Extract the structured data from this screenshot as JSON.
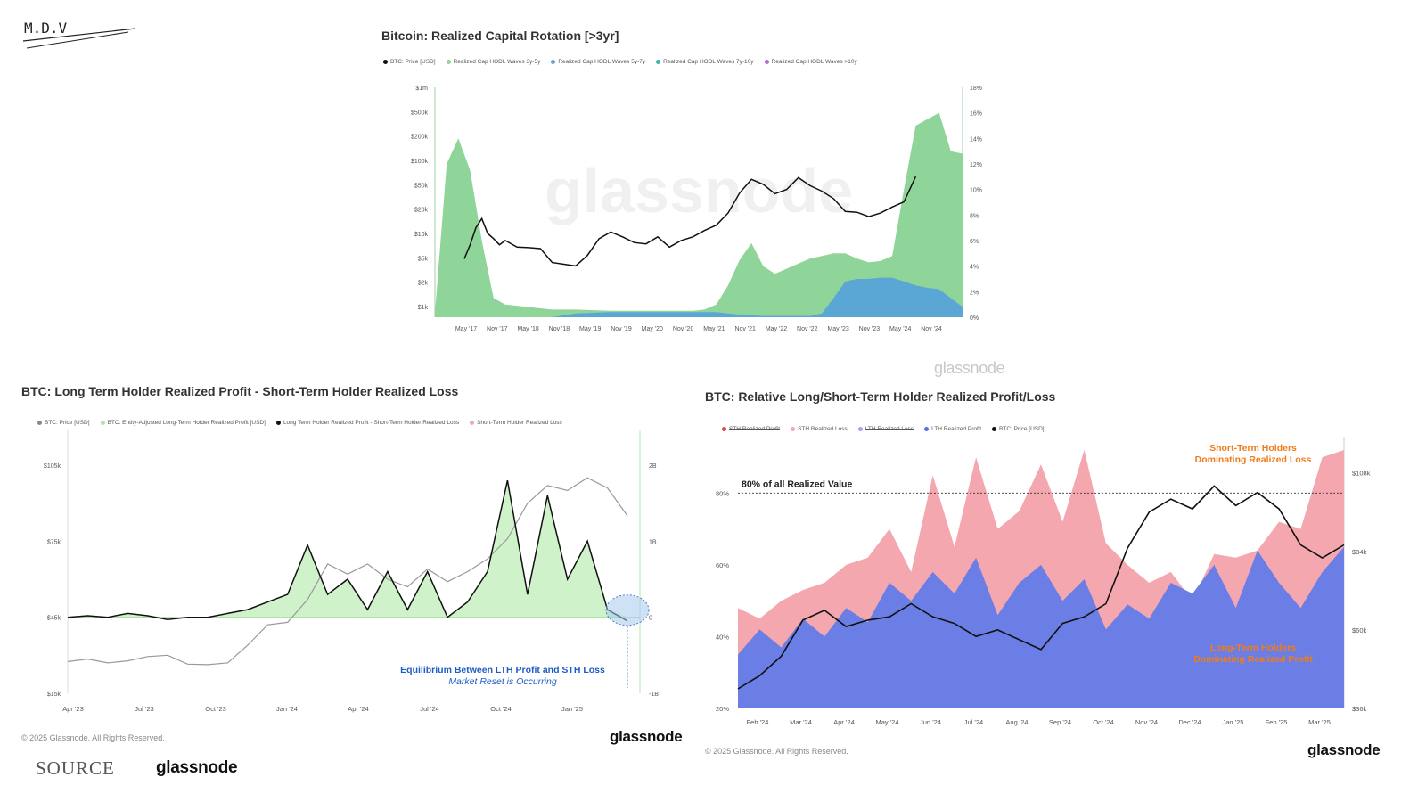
{
  "logo": {
    "text": "M.D.V"
  },
  "footer": {
    "source_label": "SOURCE",
    "source_brand": "glassnode"
  },
  "chart_data": [
    {
      "type": "area",
      "title": "Bitcoin: Realized Capital Rotation [>3yr]",
      "legend": [
        "BTC: Price [USD]",
        "Realized Cap HODL Waves 3y-5y",
        "Realized Cap HODL Waves 5y-7y",
        "Realized Cap HODL Waves 7y-10y",
        "Realized Cap HODL Waves >10y"
      ],
      "x_ticks": [
        "May '17",
        "Nov '17",
        "May '18",
        "Nov '18",
        "May '19",
        "Nov '19",
        "May '20",
        "Nov '20",
        "May '21",
        "Nov '21",
        "May '22",
        "Nov '22",
        "May '23",
        "Nov '23",
        "May '24",
        "Nov '24"
      ],
      "y_left_ticks": [
        "$1k",
        "$2k",
        "$5k",
        "$10k",
        "$20k",
        "$50k",
        "$100k",
        "$200k",
        "$500k",
        "$1m"
      ],
      "y_right_ticks": [
        "0%",
        "2%",
        "4%",
        "6%",
        "8%",
        "10%",
        "12%",
        "14%",
        "16%",
        "18%"
      ],
      "y_left_scale": "log",
      "watermark": "glassnode",
      "brand": "glassnode",
      "colors": {
        "price": "#111111",
        "green": "#8fd498",
        "blue": "#5aa7d6"
      },
      "series": [
        {
          "name": "BTC: Price [USD]",
          "axis": "left",
          "x": [
            0.5,
            0.6,
            0.7,
            0.8,
            0.9,
            1.0,
            1.1,
            1.2,
            1.4,
            1.6,
            1.8,
            2.0,
            2.2,
            2.4,
            2.6,
            2.8,
            3.0,
            3.2,
            3.4,
            3.6,
            3.8,
            4.0,
            4.2,
            4.4,
            4.6,
            4.8,
            5.0,
            5.2,
            5.4,
            5.6,
            5.8,
            6.0,
            6.2,
            6.4,
            6.6,
            6.8,
            7.0,
            7.2,
            7.4,
            7.6,
            7.8,
            8.0,
            8.2
          ],
          "y": [
            4500,
            7000,
            12000,
            16000,
            10000,
            8500,
            7000,
            8000,
            6500,
            6400,
            6200,
            4000,
            3800,
            3600,
            5000,
            8500,
            10500,
            9000,
            7500,
            7200,
            9000,
            6500,
            8000,
            9000,
            11000,
            13000,
            19000,
            36000,
            55000,
            47000,
            35000,
            40000,
            58000,
            45000,
            38000,
            30000,
            20000,
            19500,
            17000,
            19000,
            23000,
            27000,
            60000
          ]
        },
        {
          "name": "Realized Cap HODL Waves 3y-5y",
          "axis": "right",
          "x": [
            0.0,
            0.2,
            0.4,
            0.6,
            0.8,
            1.0,
            1.2,
            1.4,
            1.6,
            1.8,
            2.0,
            2.4,
            3.0,
            3.6,
            4.0,
            4.2,
            4.4,
            4.6,
            4.8,
            5.0,
            5.2,
            5.4,
            5.6,
            5.8,
            6.0,
            6.2,
            6.4,
            6.6,
            6.8,
            7.0,
            7.2,
            7.4,
            7.6,
            7.8,
            8.0,
            8.2,
            8.4,
            8.6,
            8.8,
            9.0
          ],
          "y": [
            0.3,
            12.0,
            14.0,
            11.5,
            6.0,
            1.5,
            1.0,
            0.9,
            0.8,
            0.7,
            0.6,
            0.6,
            0.5,
            0.5,
            0.5,
            0.5,
            0.5,
            0.6,
            1.0,
            2.5,
            4.5,
            5.8,
            4.0,
            3.4,
            3.8,
            4.2,
            4.6,
            4.8,
            5.0,
            5.0,
            4.6,
            4.3,
            4.4,
            4.8,
            10.0,
            15.0,
            15.5,
            16.0,
            13.0,
            12.8
          ]
        },
        {
          "name": "Realized Cap HODL Waves 5y-7y",
          "axis": "right",
          "x": [
            0.0,
            2.0,
            2.4,
            3.0,
            3.6,
            4.0,
            4.4,
            4.8,
            5.0,
            5.2,
            5.6,
            6.0,
            6.4,
            6.6,
            6.8,
            7.0,
            7.2,
            7.4,
            7.6,
            7.8,
            8.0,
            8.2,
            8.4,
            8.6,
            8.8,
            9.0
          ],
          "y": [
            0.0,
            0.0,
            0.3,
            0.4,
            0.4,
            0.4,
            0.4,
            0.4,
            0.3,
            0.2,
            0.1,
            0.1,
            0.1,
            0.3,
            1.5,
            2.8,
            3.0,
            3.0,
            3.1,
            3.1,
            2.8,
            2.5,
            2.3,
            2.2,
            1.5,
            0.8
          ]
        }
      ],
      "y_left_range": [
        "$1k",
        "$1m"
      ],
      "y_right_range": [
        0,
        18
      ]
    },
    {
      "type": "line",
      "title": "BTC: Long Term Holder Realized Profit - Short-Term Holder Realized Loss",
      "legend": [
        "BTC: Price [USD]",
        "BTC: Entity-Adjusted Long-Term Holder Realized Profit [USD]",
        "Long Term Holder Realized Profit - Short-Term Holder Realized Loss",
        "Short-Term Holder Realized Loss"
      ],
      "x_ticks": [
        "Apr '23",
        "Jul '23",
        "Oct '23",
        "Jan '24",
        "Apr '24",
        "Jul '24",
        "Oct '24",
        "Jan '25"
      ],
      "y_left_ticks": [
        "$15k",
        "$45k",
        "$75k",
        "$105k"
      ],
      "y_right_ticks": [
        "-1B",
        "0",
        "1B",
        "2B"
      ],
      "annotation": [
        "Equilibrium Between LTH Profit and STH Loss",
        "Market Reset is Occurring"
      ],
      "copyright": "© 2025 Glassnode. All Rights Reserved.",
      "brand": "glassnode",
      "series": [
        {
          "name": "BTC: Price [USD]",
          "axis": "left",
          "x": [
            0.0,
            0.3,
            0.6,
            0.9,
            1.2,
            1.5,
            1.8,
            2.1,
            2.4,
            2.7,
            3.0,
            3.3,
            3.6,
            3.9,
            4.2,
            4.5,
            4.8,
            5.1,
            5.4,
            5.7,
            6.0,
            6.3,
            6.6,
            6.9,
            7.2,
            7.5,
            7.8,
            8.1,
            8.4
          ],
          "y": [
            27500,
            28500,
            27000,
            27800,
            29500,
            30000,
            26500,
            26300,
            27000,
            34000,
            42000,
            43000,
            52000,
            66000,
            62000,
            66000,
            60000,
            57000,
            64000,
            59000,
            63000,
            68000,
            76000,
            90000,
            97000,
            95000,
            100000,
            96000,
            85000
          ]
        },
        {
          "name": "Long Term Holder Realized Profit - Short-Term Holder Realized Loss",
          "axis": "right",
          "x": [
            0.0,
            0.3,
            0.6,
            0.9,
            1.2,
            1.5,
            1.8,
            2.1,
            2.4,
            2.7,
            3.0,
            3.3,
            3.6,
            3.9,
            4.2,
            4.5,
            4.8,
            5.1,
            5.4,
            5.7,
            6.0,
            6.3,
            6.6,
            6.9,
            7.2,
            7.5,
            7.8,
            8.1,
            8.4
          ],
          "y": [
            0.0,
            0.02,
            0.0,
            0.05,
            0.02,
            -0.03,
            0.0,
            0.0,
            0.05,
            0.1,
            0.2,
            0.3,
            0.95,
            0.3,
            0.5,
            0.1,
            0.6,
            0.1,
            0.6,
            0.0,
            0.2,
            0.6,
            1.8,
            0.3,
            1.6,
            0.5,
            1.0,
            0.1,
            -0.05
          ]
        }
      ]
    },
    {
      "type": "area",
      "title": "BTC: Relative Long/Short-Term Holder Realized Profit/Loss",
      "legend": [
        "STH Realized Profit",
        "STH Realized Loss",
        "LTH Realized Loss",
        "LTH Realized Profit",
        "BTC: Price [USD]"
      ],
      "x_ticks": [
        "Feb '24",
        "Mar '24",
        "Apr '24",
        "May '24",
        "Jun '24",
        "Jul '24",
        "Aug '24",
        "Sep '24",
        "Oct '24",
        "Nov '24",
        "Dec '24",
        "Jan '25",
        "Feb '25",
        "Mar '25"
      ],
      "y_left_ticks": [
        "20%",
        "40%",
        "60%",
        "80%"
      ],
      "y_right_ticks": [
        "$36k",
        "$60k",
        "$84k",
        "$108k"
      ],
      "annotations": [
        "80% of all Realized Value",
        "Short-Term Holders",
        "Dominating Realized Loss",
        "Long-Term Holders",
        "Dominating Realized Profit"
      ],
      "copyright": "© 2025 Glassnode. All Rights Reserved.",
      "brand": "glassnode",
      "series": [
        {
          "name": "LTH Realized Profit",
          "axis": "left",
          "x": [
            0.0,
            0.5,
            1.0,
            1.5,
            2.0,
            2.5,
            3.0,
            3.5,
            4.0,
            4.5,
            5.0,
            5.5,
            6.0,
            6.5,
            7.0,
            7.5,
            8.0,
            8.5,
            9.0,
            9.5,
            10.0,
            10.5,
            11.0,
            11.5,
            12.0,
            12.5,
            13.0,
            13.5,
            14.0
          ],
          "y": [
            35,
            42,
            37,
            45,
            40,
            48,
            44,
            55,
            50,
            58,
            52,
            62,
            46,
            55,
            60,
            50,
            56,
            42,
            49,
            45,
            55,
            52,
            60,
            48,
            64,
            55,
            48,
            58,
            65
          ]
        },
        {
          "name": "STH Realized Loss",
          "axis": "left",
          "x": [
            0.0,
            0.5,
            1.0,
            1.5,
            2.0,
            2.5,
            3.0,
            3.5,
            4.0,
            4.5,
            5.0,
            5.5,
            6.0,
            6.5,
            7.0,
            7.5,
            8.0,
            8.5,
            9.0,
            9.5,
            10.0,
            10.5,
            11.0,
            11.5,
            12.0,
            12.5,
            13.0,
            13.5,
            14.0
          ],
          "y": [
            48,
            45,
            50,
            53,
            55,
            60,
            62,
            70,
            58,
            85,
            65,
            90,
            70,
            75,
            88,
            72,
            92,
            66,
            60,
            55,
            58,
            50,
            63,
            62,
            64,
            72,
            70,
            90,
            92
          ]
        },
        {
          "name": "BTC: Price [USD]",
          "axis": "right",
          "x": [
            0.0,
            0.5,
            1.0,
            1.5,
            2.0,
            2.5,
            3.0,
            3.5,
            4.0,
            4.5,
            5.0,
            5.5,
            6.0,
            6.5,
            7.0,
            7.5,
            8.0,
            8.5,
            9.0,
            9.5,
            10.0,
            10.5,
            11.0,
            11.5,
            12.0,
            12.5,
            13.0,
            13.5,
            14.0
          ],
          "y": [
            42000,
            46000,
            52000,
            63000,
            66000,
            61000,
            63000,
            64000,
            68000,
            64000,
            62000,
            58000,
            60000,
            57000,
            54000,
            62000,
            64000,
            68000,
            85000,
            96000,
            100000,
            97000,
            104000,
            98000,
            102000,
            97000,
            86000,
            82000,
            86000
          ]
        }
      ]
    }
  ]
}
